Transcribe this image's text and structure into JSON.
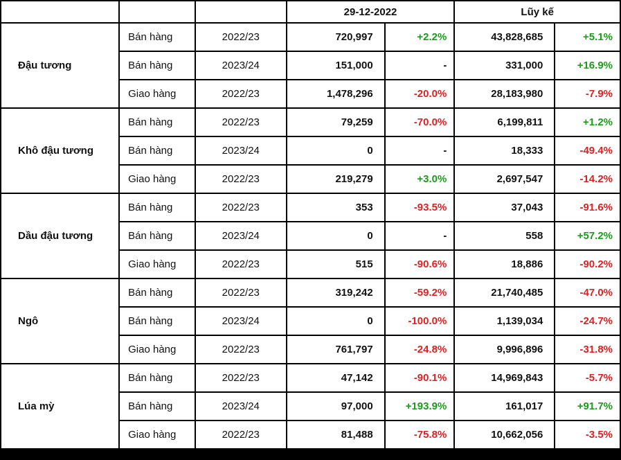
{
  "header": {
    "date": "29-12-2022",
    "cumulative": "Lũy kế"
  },
  "colors": {
    "positive": "#1a9b1a",
    "negative": "#e02020"
  },
  "groups": [
    {
      "name": "Đậu tương",
      "rows": [
        {
          "action": "Bán hàng",
          "season": "2022/23",
          "day_value": "720,997",
          "day_change": "+2.2%",
          "cum_value": "43,828,685",
          "cum_change": "+5.1%"
        },
        {
          "action": "Bán hàng",
          "season": "2023/24",
          "day_value": "151,000",
          "day_change": "-",
          "cum_value": "331,000",
          "cum_change": "+16.9%"
        },
        {
          "action": "Giao hàng",
          "season": "2022/23",
          "day_value": "1,478,296",
          "day_change": "-20.0%",
          "cum_value": "28,183,980",
          "cum_change": "-7.9%"
        }
      ]
    },
    {
      "name": "Khô đậu tương",
      "rows": [
        {
          "action": "Bán hàng",
          "season": "2022/23",
          "day_value": "79,259",
          "day_change": "-70.0%",
          "cum_value": "6,199,811",
          "cum_change": "+1.2%"
        },
        {
          "action": "Bán hàng",
          "season": "2023/24",
          "day_value": "0",
          "day_change": "-",
          "cum_value": "18,333",
          "cum_change": "-49.4%"
        },
        {
          "action": "Giao hàng",
          "season": "2022/23",
          "day_value": "219,279",
          "day_change": "+3.0%",
          "cum_value": "2,697,547",
          "cum_change": "-14.2%"
        }
      ]
    },
    {
      "name": "Dầu đậu tương",
      "rows": [
        {
          "action": "Bán hàng",
          "season": "2022/23",
          "day_value": "353",
          "day_change": "-93.5%",
          "cum_value": "37,043",
          "cum_change": "-91.6%"
        },
        {
          "action": "Bán hàng",
          "season": "2023/24",
          "day_value": "0",
          "day_change": "-",
          "cum_value": "558",
          "cum_change": "+57.2%"
        },
        {
          "action": "Giao hàng",
          "season": "2022/23",
          "day_value": "515",
          "day_change": "-90.6%",
          "cum_value": "18,886",
          "cum_change": "-90.2%"
        }
      ]
    },
    {
      "name": "Ngô",
      "rows": [
        {
          "action": "Bán hàng",
          "season": "2022/23",
          "day_value": "319,242",
          "day_change": "-59.2%",
          "cum_value": "21,740,485",
          "cum_change": "-47.0%"
        },
        {
          "action": "Bán hàng",
          "season": "2023/24",
          "day_value": "0",
          "day_change": "-100.0%",
          "cum_value": "1,139,034",
          "cum_change": "-24.7%"
        },
        {
          "action": "Giao hàng",
          "season": "2022/23",
          "day_value": "761,797",
          "day_change": "-24.8%",
          "cum_value": "9,996,896",
          "cum_change": "-31.8%"
        }
      ]
    },
    {
      "name": "Lúa mỳ",
      "rows": [
        {
          "action": "Bán hàng",
          "season": "2022/23",
          "day_value": "47,142",
          "day_change": "-90.1%",
          "cum_value": "14,969,843",
          "cum_change": "-5.7%"
        },
        {
          "action": "Bán hàng",
          "season": "2023/24",
          "day_value": "97,000",
          "day_change": "+193.9%",
          "cum_value": "161,017",
          "cum_change": "+91.7%"
        },
        {
          "action": "Giao hàng",
          "season": "2022/23",
          "day_value": "81,488",
          "day_change": "-75.8%",
          "cum_value": "10,662,056",
          "cum_change": "-3.5%"
        }
      ]
    }
  ]
}
